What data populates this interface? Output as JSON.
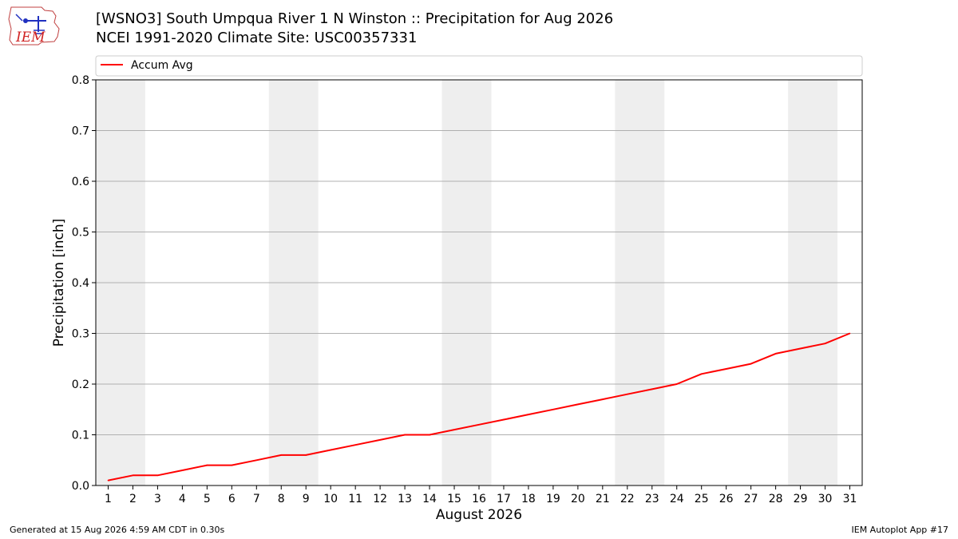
{
  "header": {
    "title_line1": "[WSNO3] South Umpqua River 1 N Winston :: Precipitation for Aug 2026",
    "title_line2": "NCEI 1991-2020 Climate Site: USC00357331"
  },
  "logo": {
    "text": "IEM",
    "icon": "iem-logo-icon"
  },
  "footer": {
    "generated": "Generated at 15 Aug 2026 4:59 AM CDT in 0.30s",
    "app": "IEM Autoplot App #17"
  },
  "chart_data": {
    "type": "line",
    "xlabel": "August 2026",
    "ylabel": "Precipitation [inch]",
    "xlim": [
      0.5,
      31.5
    ],
    "ylim": [
      0,
      0.8
    ],
    "yticks": [
      0.0,
      0.1,
      0.2,
      0.3,
      0.4,
      0.5,
      0.6,
      0.7,
      0.8
    ],
    "ytick_labels": [
      "0.0",
      "0.1",
      "0.2",
      "0.3",
      "0.4",
      "0.5",
      "0.6",
      "0.7",
      "0.8"
    ],
    "xticks": [
      1,
      2,
      3,
      4,
      5,
      6,
      7,
      8,
      9,
      10,
      11,
      12,
      13,
      14,
      15,
      16,
      17,
      18,
      19,
      20,
      21,
      22,
      23,
      24,
      25,
      26,
      27,
      28,
      29,
      30,
      31
    ],
    "grid": "horizontal",
    "legend_position": "top",
    "weekend_shading": [
      [
        1,
        2
      ],
      [
        8,
        9
      ],
      [
        15,
        16
      ],
      [
        22,
        23
      ],
      [
        29,
        30
      ]
    ],
    "series": [
      {
        "name": "Accum Avg",
        "color": "#ff0000",
        "x": [
          1,
          2,
          3,
          4,
          5,
          6,
          7,
          8,
          9,
          10,
          11,
          12,
          13,
          14,
          15,
          16,
          17,
          18,
          19,
          20,
          21,
          22,
          23,
          24,
          25,
          26,
          27,
          28,
          29,
          30,
          31
        ],
        "values": [
          0.01,
          0.02,
          0.02,
          0.03,
          0.04,
          0.04,
          0.05,
          0.06,
          0.06,
          0.07,
          0.08,
          0.09,
          0.1,
          0.1,
          0.11,
          0.12,
          0.13,
          0.14,
          0.15,
          0.16,
          0.17,
          0.18,
          0.19,
          0.2,
          0.22,
          0.23,
          0.24,
          0.26,
          0.27,
          0.28,
          0.3
        ]
      }
    ]
  }
}
